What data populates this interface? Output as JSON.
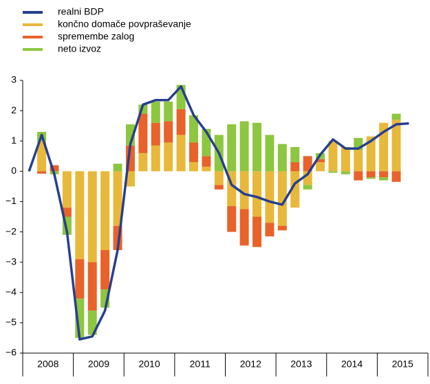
{
  "chart_data": {
    "type": "bar",
    "stacked": true,
    "categories": [
      null,
      null,
      null,
      null,
      null,
      null,
      null,
      null,
      null,
      null,
      null,
      null,
      null,
      null,
      null,
      null,
      null,
      null,
      null,
      null,
      null,
      null,
      null,
      null,
      null,
      null,
      null,
      null,
      null,
      null,
      null,
      null
    ],
    "year_labels": [
      "2008",
      "2009",
      "2010",
      "2011",
      "2012",
      "2013",
      "2014",
      "2015"
    ],
    "series": [
      {
        "name": "realni BDP",
        "type": "line",
        "color": "#263f8e",
        "values": [
          0,
          1.2,
          -0.1,
          -2.0,
          -5.55,
          -5.45,
          -4.6,
          -2.6,
          0.9,
          2.2,
          2.35,
          2.35,
          2.8,
          1.85,
          1.3,
          0.6,
          -0.45,
          -0.75,
          -0.85,
          -1.0,
          -1.1,
          -0.4,
          -0.1,
          0.55,
          1.05,
          0.75,
          0.75,
          1.0,
          1.3,
          1.55,
          1.58,
          null
        ]
      },
      {
        "name": "končno domače povpraševanje",
        "type": "bar",
        "color": "#e8b83a",
        "values": [
          0,
          1.0,
          0,
          -1.2,
          -2.9,
          -3.0,
          -2.6,
          -1.8,
          -0.5,
          0.6,
          0.85,
          0.95,
          1.2,
          0.3,
          0.15,
          -0.45,
          -1.15,
          -1.25,
          -1.5,
          -1.7,
          -1.8,
          -1.2,
          -0.45,
          0.3,
          1.0,
          0.8,
          0.7,
          1.15,
          1.6,
          1.7,
          null,
          null
        ]
      },
      {
        "name": "spremembe zalog",
        "type": "bar",
        "color": "#e8622a",
        "values": [
          0,
          -0.08,
          0.2,
          -0.3,
          -1.3,
          -1.6,
          -1.3,
          -0.8,
          0.85,
          1.3,
          0.75,
          0.7,
          0.85,
          0.65,
          0.35,
          -0.15,
          -0.85,
          -1.2,
          -1.0,
          -0.45,
          -0.15,
          0.3,
          0.5,
          0.1,
          0,
          0,
          -0.3,
          -0.2,
          -0.2,
          -0.35,
          null,
          null
        ]
      },
      {
        "name": "neto izvoz",
        "type": "bar",
        "color": "#8dc63f",
        "values": [
          0,
          0.3,
          -0.1,
          -0.6,
          -1.3,
          -0.8,
          -0.6,
          0.25,
          0.7,
          0.3,
          0.7,
          0.65,
          0.8,
          0.9,
          0.9,
          1.2,
          1.55,
          1.65,
          1.6,
          1.2,
          0.9,
          0.5,
          -0.15,
          0.2,
          -0.05,
          -0.1,
          0.4,
          -0.05,
          -0.1,
          0.2,
          null,
          null
        ]
      }
    ],
    "ylim": [
      -6,
      3
    ],
    "yticks": [
      3,
      2,
      1,
      0,
      {
        "value": -1,
        "label": "−1"
      },
      {
        "value": -2,
        "label": "−2"
      },
      {
        "value": -3,
        "label": "−3"
      },
      {
        "value": -4,
        "label": "−4"
      },
      {
        "value": -5,
        "label": "−5"
      },
      {
        "value": -6,
        "label": "−6"
      }
    ]
  }
}
